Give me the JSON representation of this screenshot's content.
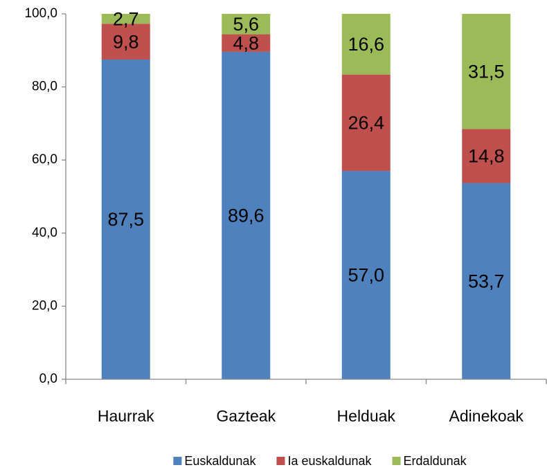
{
  "chart_data": {
    "type": "stacked_bar",
    "categories": [
      "Haurrak",
      "Gazteak",
      "Helduak",
      "Adinekoak"
    ],
    "series": [
      {
        "name": "Euskaldunak",
        "color": "#4f81bd",
        "values": [
          87.5,
          89.6,
          57.0,
          53.7
        ],
        "value_labels": [
          "87,5",
          "89,6",
          "57,0",
          "53,7"
        ]
      },
      {
        "name": "Ia euskaldunak",
        "color": "#c0504d",
        "values": [
          9.8,
          4.8,
          26.4,
          14.8
        ],
        "value_labels": [
          "9,8",
          "4,8",
          "26,4",
          "14,8"
        ]
      },
      {
        "name": "Erdaldunak",
        "color": "#9bbb59",
        "values": [
          2.7,
          5.6,
          16.6,
          31.5
        ],
        "value_labels": [
          "2,7",
          "5,6",
          "16,6",
          "31,5"
        ]
      }
    ],
    "ylim": [
      0,
      100
    ],
    "yticks": [
      {
        "value": 0,
        "label": "0,0"
      },
      {
        "value": 20,
        "label": "20,0"
      },
      {
        "value": 40,
        "label": "40,0"
      },
      {
        "value": 60,
        "label": "60,0"
      },
      {
        "value": 80,
        "label": "80,0"
      },
      {
        "value": 100,
        "label": "100,0"
      }
    ],
    "legend": "bottom"
  }
}
